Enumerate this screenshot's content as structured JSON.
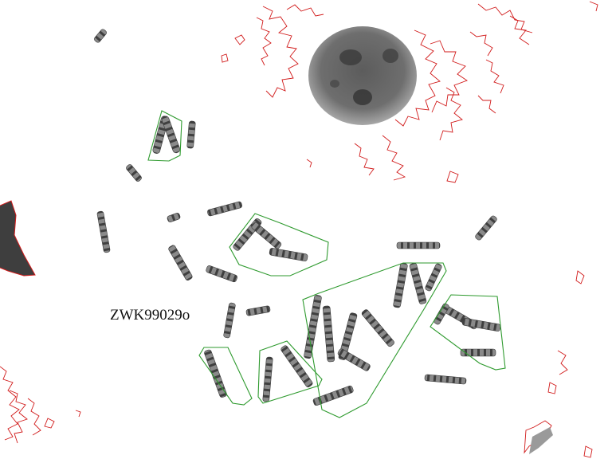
{
  "image": {
    "specimen_label": "ZWK99029o",
    "colors": {
      "background": "#ffffff",
      "chromosome_dark": "#3a3a3a",
      "chromosome_light": "#9a9a9a",
      "nucleus": "#7a7a7a",
      "detection_outline": "#d11a1a",
      "group_outline": "#2e9a2e"
    }
  }
}
